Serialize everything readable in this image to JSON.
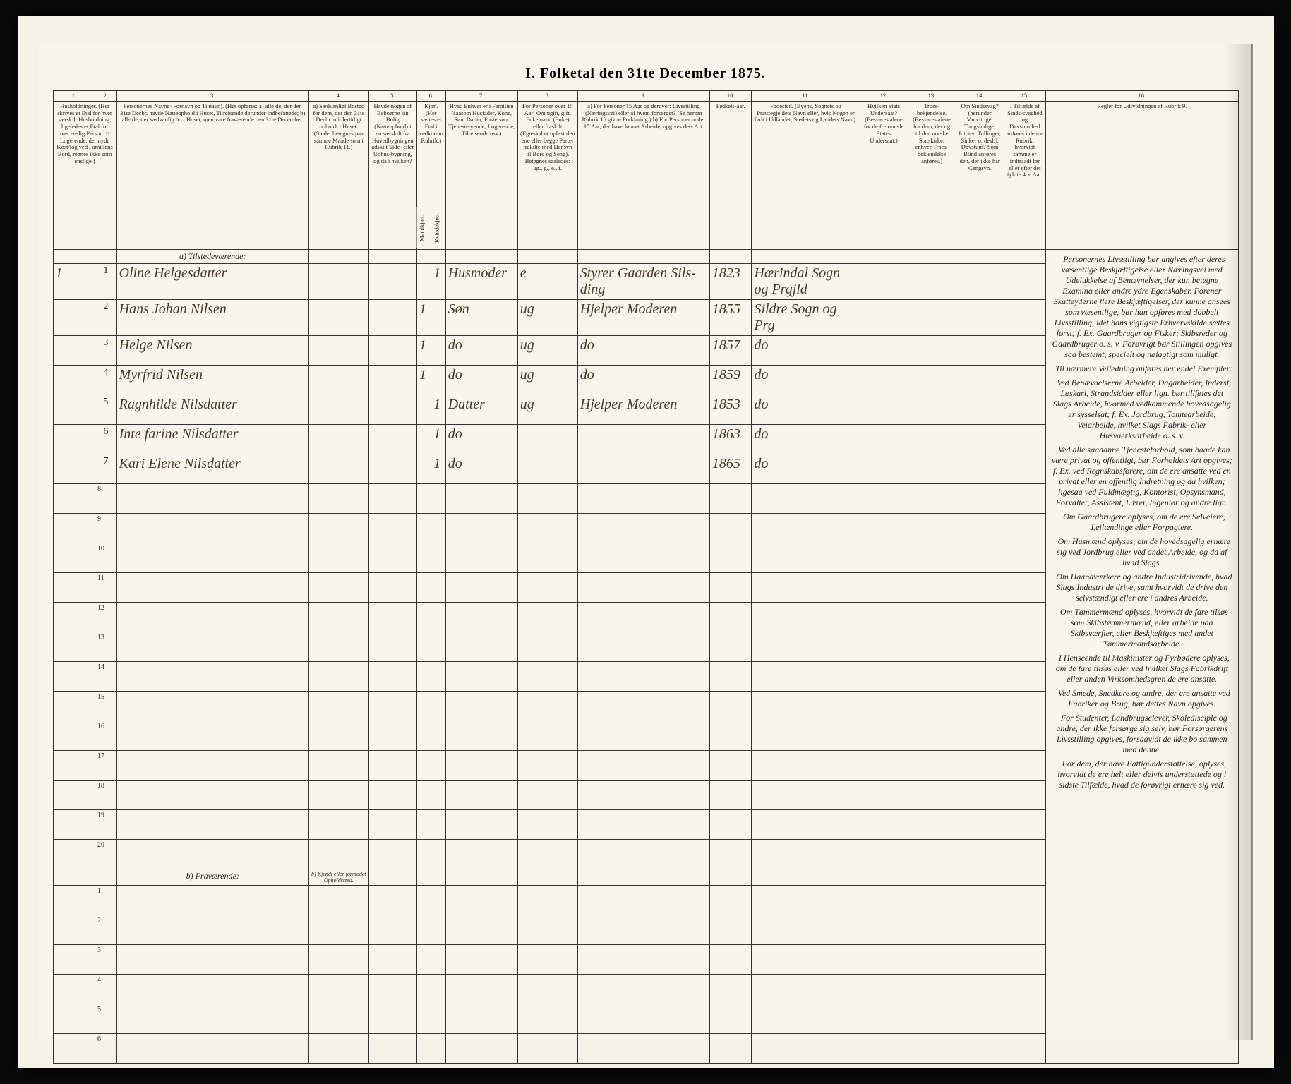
{
  "title": "I. Folketal den 31te December 1875.",
  "columns": {
    "nums": [
      "1.",
      "2.",
      "3.",
      "4.",
      "5.",
      "6.",
      "7.",
      "8.",
      "9.",
      "10.",
      "11.",
      "12.",
      "13.",
      "14.",
      "15.",
      "16."
    ],
    "h1": "Husholdninger.\n(Her skrives et Etal for hver særskilt Husholdning; ligeledes et Etal for hver enslig Person.\n☞ Logerende, der nyde Kost/log ved Familiens Bord, regnes ikke som enslige.)",
    "h3": "Personernes Navne (Fornavn og Tilnavn).\n(Her opføres:\na) alle de, der den 31te Decbr. havde Natteophold i Huset, Tilreisende derunder indbefattede;\nb) alle de, der sædvanlig bo i Huset, men vare fraværende den 31te December.",
    "h4": "a) Sædvanligt Bosted for dem, der den 31te Decbr. midlertidigt opholdt i Huset.\n(Stedet betegnes paa samme Maade som i Rubrik 11.)",
    "h5": "Havde nogen af Beboerne sin Bolig (Natteophold) i en særskilt fra Hovedbygningen adskilt Side- eller Udhus-bygning, og da i hvilken?",
    "h6": "Kjøn.\n(Her sættes et Etal i vedkomm. Rubrik.)",
    "h6a": "Mandkjøn.",
    "h6b": "Kvindekjøn.",
    "h7": "Hvad Enhver er i Familien\n(saasom Husfader, Kone, Søn, Datter, Fostersøn, Tjenestetyende, Logerende, Tilreisende osv.)",
    "h8": "For Personer over 15 Aar: Om ugift, gift, Enkemand (Enke) eller fraskilt (Egteskabet opløst den ene eller begge Parter frakilte med Hensyn til Bord og Seng). Betegnes saaledes: ug., g., e., f.",
    "h9": "a) For Personer 15 Aar og derover: Livsstilling (Næringsvei) eller af hvem forsørget? (Se herom Rubrik 16 givne Forklaring.)\nb) For Personer under 15 Aar, der have lønnet Arbeide, opgives dets Art.",
    "h10": "Fødsels-aar.",
    "h11": "Fødested.\n(Byens, Sognets og Præstegjeldets Navn eller, hvis Nogen er født i Udlandet, Stedets og Landets Navn).",
    "h12": "Hvilken Stats Undersaat?\n(Besvares alene for de fremmede States Undersaat.)",
    "h13": "Troes-bekjendelse.\n(Besvares alene for dem, der og til den norske Statskirke; enhver Troes-bekjendelse anføres.)",
    "h14": "Om Sindssvag? (herunder Vanvittige, Tungsindige, Idioter, Tullinger, Sinker o. desl.). Døvstum? Som Blind anføres den, der ikke har Gangsyn.",
    "h15": "I Tilfælde af Sinds-svaghed og Døvstumhed anføres i denne Rubrik, hvorvidt samme er indtraadt før eller efter det fyldte 4de Aar.",
    "h16": "Regler for Udfyldningen\naf\nRubrik 9."
  },
  "section_a": "a) Tilstedeværende:",
  "section_b": "b) Fraværende:",
  "section_b_col4": "b) Kjendt eller formodet Opholdssted.",
  "rows": [
    {
      "hh": "1",
      "p": "1",
      "name": "Oline Helgesdatter",
      "m": "",
      "k": "1",
      "rel": "Husmoder",
      "civ": "e",
      "occ": "Styrer Gaarden Sils-ding",
      "year": "1823",
      "place": "Hærindal Sogn og Prgjld"
    },
    {
      "hh": "",
      "p": "2",
      "name": "Hans Johan Nilsen",
      "m": "1",
      "k": "",
      "rel": "Søn",
      "civ": "ug",
      "occ": "Hjelper Moderen",
      "year": "1855",
      "place": "Sildre Sogn og Prg"
    },
    {
      "hh": "",
      "p": "3",
      "name": "Helge Nilsen",
      "m": "1",
      "k": "",
      "rel": "do",
      "civ": "ug",
      "occ": "do",
      "year": "1857",
      "place": "do"
    },
    {
      "hh": "",
      "p": "4",
      "name": "Myrfrid Nilsen",
      "m": "1",
      "k": "",
      "rel": "do",
      "civ": "ug",
      "occ": "do",
      "year": "1859",
      "place": "do"
    },
    {
      "hh": "",
      "p": "5",
      "name": "Ragnhilde Nilsdatter",
      "m": "",
      "k": "1",
      "rel": "Datter",
      "civ": "ug",
      "occ": "Hjelper Moderen",
      "year": "1853",
      "place": "do"
    },
    {
      "hh": "",
      "p": "6",
      "name": "Inte farine Nilsdatter",
      "m": "",
      "k": "1",
      "rel": "do",
      "civ": "",
      "occ": "",
      "year": "1863",
      "place": "do"
    },
    {
      "hh": "",
      "p": "7",
      "name": "Kari Elene Nilsdatter",
      "m": "",
      "k": "1",
      "rel": "do",
      "civ": "",
      "occ": "",
      "year": "1865",
      "place": "do"
    }
  ],
  "empty_a": [
    "8",
    "9",
    "10",
    "11",
    "12",
    "13",
    "14",
    "15",
    "16",
    "17",
    "18",
    "19",
    "20"
  ],
  "empty_b": [
    "1",
    "2",
    "3",
    "4",
    "5",
    "6"
  ],
  "rules_text": [
    "Personernes Livsstilling bør angives efter deres væsentlige Beskjæftigelse eller Næringsvei med Udelukkelse af Benævnelser, der kun betegne Examina eller andre ydre Egenskaber. Forener Skatteyderne flere Beskjæftigelser, der kunne ansees som væsentlige, bør han opføres med dobbelt Livsstilling, idet hans vigtigste Erhvervskilde sættes først; f. Ex. Gaardbruger og Fisker; Skibsreder og Gaardbruger o. s. v. Forøvrigt bør Stillingen opgives saa bestemt, specielt og nøiagtigt som muligt.",
    "Til nærmere Veiledning anføres her endel Exempler:",
    "Ved Benævnelserne Arbeider, Dagarbeider, Inderst, Løskarl, Strandsidder eller lign. bør tillføies det Slags Arbeide, hvormed vedkommende hovedsagelig er sysselsat; f. Ex. Jordbrug, Tomtearbeide, Veiarbeide, hvilket Slags Fabrik- eller Husvaerksarbeide o. s. v.",
    "Ved alle saadanne Tjenesteforhold, som baade kan være privat og offentligt, bør Forholdets Art opgives; f. Ex. ved Regnskabsførere, om de ere ansatte ved en privat eller en offentlig Indretning og da hvilken; ligesaa ved Fuldmægtig, Kontorist, Opsynsmand, Forvalter, Assistent, Lærer, Ingeniør og andre lign.",
    "Om Gaardbrugere oplyses, om de ere Selveiere, Leilændinge eller Forpagtere.",
    "Om Husmænd oplyses, om de hovedsagelig ernære sig ved Jordbrug eller ved andet Arbeide, og da af hvad Slags.",
    "Om Haandværkere og andre Industridrivende, hvad Slags Industri de drive, samt hvorvidt de drive den selvstændigt eller ere i andres Arbeide.",
    "Om Tømmermænd oplyses, hvorvidt de fare tilsøs som Skibstømmermænd, eller arbeide paa Skibsværfter, eller Beskjæftiges med andet Tømmermandsarbeide.",
    "I Henseende til Maskinister og Fyrbødere oplyses, om de fare tilsøs eller ved hvilket Slags Fabrikdrift eller anden Virksomhedsgren de ere ansatte.",
    "Ved Smede, Snedkere og andre, der ere ansatte ved Fabriker og Brug, bør dettes Navn opgives.",
    "For Studenter, Landbrugselever, Skoledisciple og andre, der ikke forsørge sig selv, bør Forsørgerens Livsstilling opgives, forsaavidt de ikke bo sammen med denne.",
    "For dem, der have Fattigunderstøttelse, oplyses, hvorvidt de ere helt eller delvis understøttede og i sidste Tilfælde, hvad de forøvrigt ernære sig ved."
  ],
  "colors": {
    "paper": "#f8f5ec",
    "frame": "#f5f2e8",
    "ink": "#222222",
    "handwriting": "#4a3a28",
    "border": "#333333",
    "background": "#0a0a0a"
  }
}
